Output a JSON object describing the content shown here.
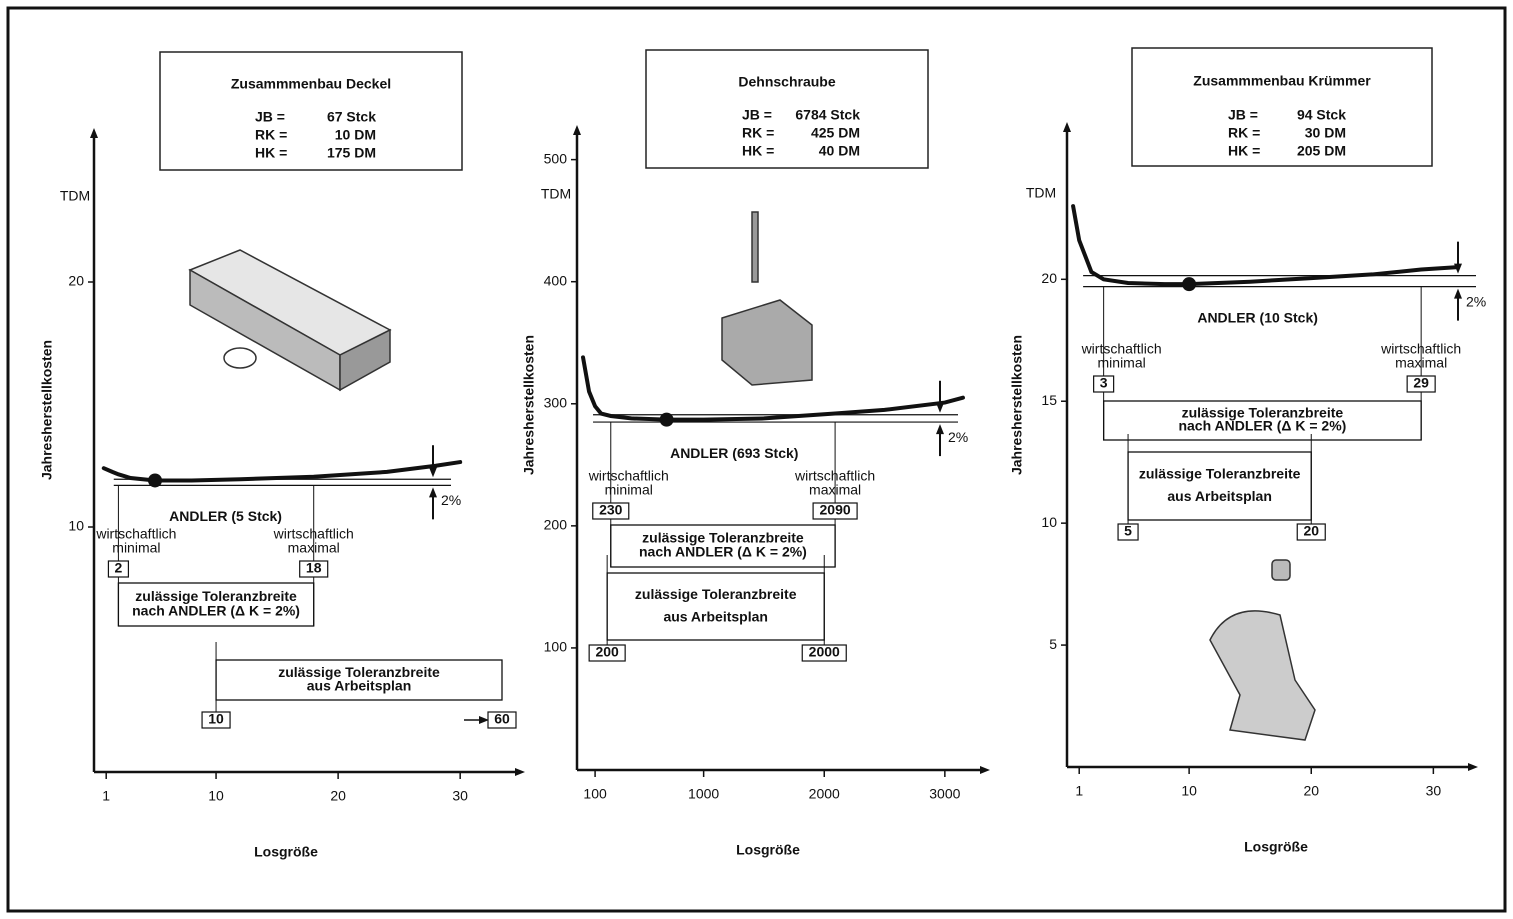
{
  "chart_data": [
    {
      "type": "line",
      "title": "Zusammmenbau Deckel",
      "info": [
        [
          "JB =",
          "67 Stck"
        ],
        [
          "RK =",
          "10 DM"
        ],
        [
          "HK =",
          "175 DM"
        ]
      ],
      "y_unit": "TDM",
      "ylabel": "Jahresherstellkosten",
      "xlabel": "Losgröße",
      "xlim": [
        0,
        34
      ],
      "ylim": [
        0,
        26
      ],
      "xticks": [
        1,
        10,
        20,
        30
      ],
      "yticks": [
        10,
        20
      ],
      "series": [
        {
          "color": "#111111",
          "x": [
            0.8,
            1.5,
            2,
            3,
            4,
            5,
            8,
            12,
            18,
            24,
            28,
            30
          ],
          "values": [
            12.4,
            12.25,
            12.15,
            12.0,
            11.95,
            11.9,
            11.9,
            11.95,
            12.05,
            12.25,
            12.5,
            12.65
          ]
        }
      ],
      "optimum": {
        "x": 5,
        "y": 11.9,
        "label": "ANDLER (5 Stck)"
      },
      "limit_lines": [
        11.7,
        11.95
      ],
      "limit_label": "2%",
      "ranges": [
        {
          "label": [
            "zulässige Toleranzbreite",
            "nach ANDLER (Δ K = 2%)"
          ],
          "from": {
            "value": 2,
            "note": [
              "wirtschaftlich",
              "minimal"
            ]
          },
          "to": {
            "value": 18,
            "note": [
              "wirtschaftlich",
              "maximal"
            ]
          }
        },
        {
          "label": [
            "zulässige Toleranzbreite",
            "aus Arbeitsplan"
          ],
          "from": {
            "value": 10
          },
          "to": {
            "value": 60
          }
        }
      ]
    },
    {
      "type": "line",
      "title": "Dehnschraube",
      "info": [
        [
          "JB =",
          "6784 Stck"
        ],
        [
          "RK =",
          "425 DM"
        ],
        [
          "HK =",
          "40 DM"
        ]
      ],
      "y_unit": "TDM",
      "ylabel": "Jahresherstellkosten",
      "xlabel": "Losgröße",
      "xlim": [
        -50,
        3250
      ],
      "ylim": [
        0,
        530
      ],
      "xticks": [
        100,
        1000,
        2000,
        3000
      ],
      "yticks": [
        100,
        200,
        300,
        400,
        500
      ],
      "series": [
        {
          "color": "#111111",
          "x": [
            0,
            50,
            100,
            150,
            230,
            400,
            693,
            1000,
            1500,
            2090,
            2500,
            3000,
            3150
          ],
          "values": [
            338,
            310,
            298,
            292,
            290,
            288,
            287,
            287,
            288,
            292,
            295,
            301,
            305
          ]
        }
      ],
      "optimum": {
        "x": 693,
        "y": 287,
        "label": "ANDLER (693 Stck)"
      },
      "limit_lines": [
        285,
        291
      ],
      "limit_label": "2%",
      "ranges": [
        {
          "label": [
            "zulässige Toleranzbreite",
            "nach ANDLER (Δ K = 2%)"
          ],
          "from": {
            "value": 230,
            "note": [
              "wirtschaftlich",
              "minimal"
            ]
          },
          "to": {
            "value": 2090,
            "note": [
              "wirtschaftlich",
              "maximal"
            ]
          }
        },
        {
          "label": [
            "zulässige Toleranzbreite",
            "aus Arbeitsplan"
          ],
          "from": {
            "value": 200
          },
          "to": {
            "value": 2000
          }
        }
      ]
    },
    {
      "type": "line",
      "title": "Zusammmenbau Krümmer",
      "info": [
        [
          "JB =",
          "94 Stck"
        ],
        [
          "RK =",
          "30 DM"
        ],
        [
          "HK =",
          "205 DM"
        ]
      ],
      "y_unit": "TDM",
      "ylabel": "Jahresherstellkosten",
      "xlabel": "Losgröße",
      "xlim": [
        0,
        33
      ],
      "ylim": [
        0,
        26
      ],
      "xticks": [
        1,
        10,
        20,
        30
      ],
      "yticks": [
        5,
        10,
        15,
        20
      ],
      "series": [
        {
          "color": "#111111",
          "x": [
            0.5,
            1,
            2,
            3,
            5,
            8,
            10,
            15,
            20,
            25,
            29,
            32
          ],
          "values": [
            23,
            21.6,
            20.3,
            20.0,
            19.85,
            19.8,
            19.8,
            19.9,
            20.05,
            20.2,
            20.4,
            20.5
          ]
        }
      ],
      "optimum": {
        "x": 10,
        "y": 19.8,
        "label": "ANDLER (10 Stck)"
      },
      "limit_lines": [
        19.7,
        20.15
      ],
      "limit_label": "2%",
      "ranges": [
        {
          "label": [
            "zulässige Toleranzbreite",
            "nach ANDLER (Δ K = 2%)"
          ],
          "from": {
            "value": 3,
            "note": [
              "wirtschaftlich",
              "minimal"
            ]
          },
          "to": {
            "value": 29,
            "note": [
              "wirtschaftlich",
              "maximal"
            ]
          }
        },
        {
          "label": [
            "zulässige Toleranzbreite",
            "aus Arbeitsplan"
          ],
          "from": {
            "value": 5
          },
          "to": {
            "value": 20
          }
        }
      ]
    }
  ]
}
